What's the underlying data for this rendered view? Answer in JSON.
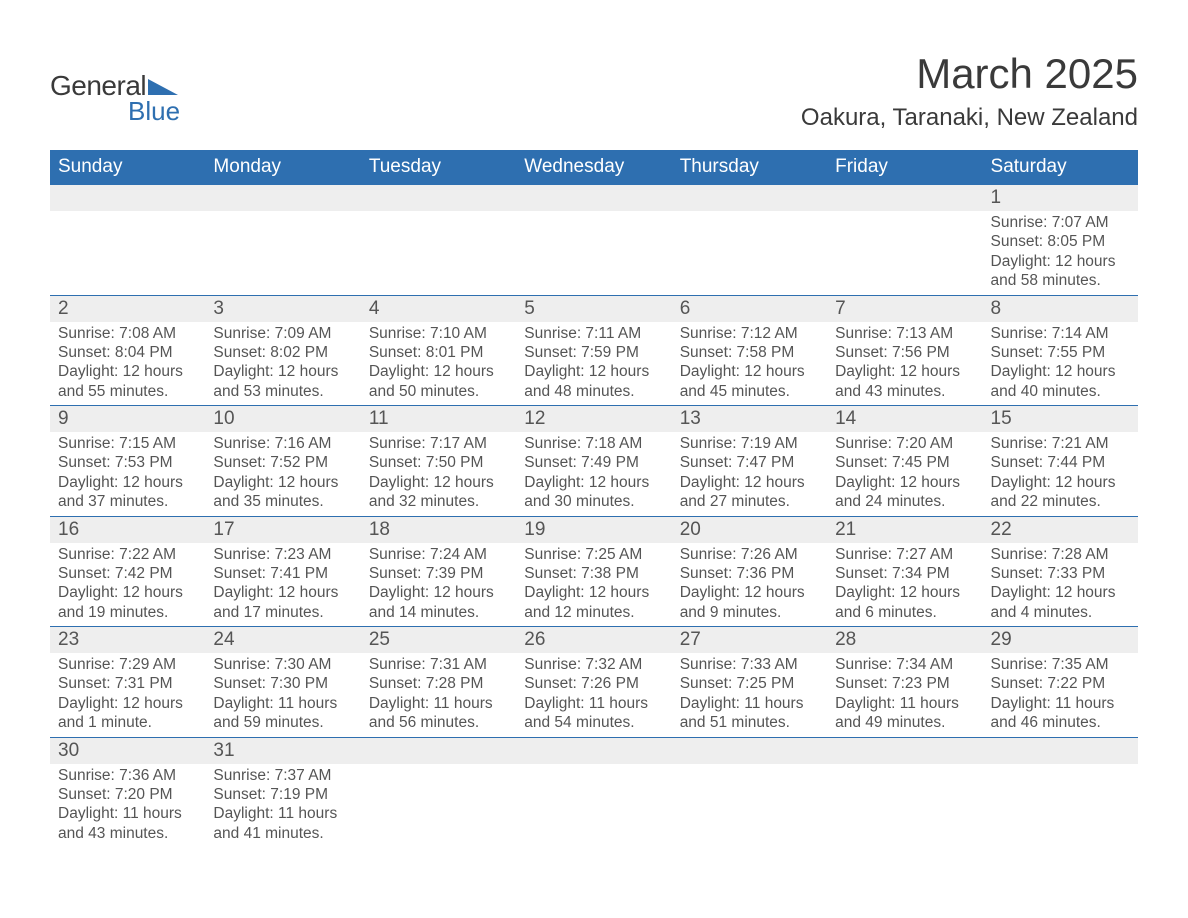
{
  "logo": {
    "general": "General",
    "blue": "Blue",
    "shape_color": "#2e6fb0"
  },
  "header": {
    "month_title": "March 2025",
    "location": "Oakura, Taranaki, New Zealand"
  },
  "colors": {
    "header_bg": "#2e6fb0",
    "header_text": "#ffffff",
    "daynum_bg": "#eeeeee",
    "body_text": "#555555",
    "border": "#2e6fb0",
    "page_bg": "#ffffff"
  },
  "typography": {
    "month_title_fontsize": 42,
    "location_fontsize": 24,
    "weekday_fontsize": 19,
    "daynum_fontsize": 19,
    "detail_fontsize": 15.5
  },
  "weekdays": [
    "Sunday",
    "Monday",
    "Tuesday",
    "Wednesday",
    "Thursday",
    "Friday",
    "Saturday"
  ],
  "weeks": [
    [
      null,
      null,
      null,
      null,
      null,
      null,
      {
        "n": "1",
        "sunrise": "7:07 AM",
        "sunset": "8:05 PM",
        "daylight": "12 hours and 58 minutes."
      }
    ],
    [
      {
        "n": "2",
        "sunrise": "7:08 AM",
        "sunset": "8:04 PM",
        "daylight": "12 hours and 55 minutes."
      },
      {
        "n": "3",
        "sunrise": "7:09 AM",
        "sunset": "8:02 PM",
        "daylight": "12 hours and 53 minutes."
      },
      {
        "n": "4",
        "sunrise": "7:10 AM",
        "sunset": "8:01 PM",
        "daylight": "12 hours and 50 minutes."
      },
      {
        "n": "5",
        "sunrise": "7:11 AM",
        "sunset": "7:59 PM",
        "daylight": "12 hours and 48 minutes."
      },
      {
        "n": "6",
        "sunrise": "7:12 AM",
        "sunset": "7:58 PM",
        "daylight": "12 hours and 45 minutes."
      },
      {
        "n": "7",
        "sunrise": "7:13 AM",
        "sunset": "7:56 PM",
        "daylight": "12 hours and 43 minutes."
      },
      {
        "n": "8",
        "sunrise": "7:14 AM",
        "sunset": "7:55 PM",
        "daylight": "12 hours and 40 minutes."
      }
    ],
    [
      {
        "n": "9",
        "sunrise": "7:15 AM",
        "sunset": "7:53 PM",
        "daylight": "12 hours and 37 minutes."
      },
      {
        "n": "10",
        "sunrise": "7:16 AM",
        "sunset": "7:52 PM",
        "daylight": "12 hours and 35 minutes."
      },
      {
        "n": "11",
        "sunrise": "7:17 AM",
        "sunset": "7:50 PM",
        "daylight": "12 hours and 32 minutes."
      },
      {
        "n": "12",
        "sunrise": "7:18 AM",
        "sunset": "7:49 PM",
        "daylight": "12 hours and 30 minutes."
      },
      {
        "n": "13",
        "sunrise": "7:19 AM",
        "sunset": "7:47 PM",
        "daylight": "12 hours and 27 minutes."
      },
      {
        "n": "14",
        "sunrise": "7:20 AM",
        "sunset": "7:45 PM",
        "daylight": "12 hours and 24 minutes."
      },
      {
        "n": "15",
        "sunrise": "7:21 AM",
        "sunset": "7:44 PM",
        "daylight": "12 hours and 22 minutes."
      }
    ],
    [
      {
        "n": "16",
        "sunrise": "7:22 AM",
        "sunset": "7:42 PM",
        "daylight": "12 hours and 19 minutes."
      },
      {
        "n": "17",
        "sunrise": "7:23 AM",
        "sunset": "7:41 PM",
        "daylight": "12 hours and 17 minutes."
      },
      {
        "n": "18",
        "sunrise": "7:24 AM",
        "sunset": "7:39 PM",
        "daylight": "12 hours and 14 minutes."
      },
      {
        "n": "19",
        "sunrise": "7:25 AM",
        "sunset": "7:38 PM",
        "daylight": "12 hours and 12 minutes."
      },
      {
        "n": "20",
        "sunrise": "7:26 AM",
        "sunset": "7:36 PM",
        "daylight": "12 hours and 9 minutes."
      },
      {
        "n": "21",
        "sunrise": "7:27 AM",
        "sunset": "7:34 PM",
        "daylight": "12 hours and 6 minutes."
      },
      {
        "n": "22",
        "sunrise": "7:28 AM",
        "sunset": "7:33 PM",
        "daylight": "12 hours and 4 minutes."
      }
    ],
    [
      {
        "n": "23",
        "sunrise": "7:29 AM",
        "sunset": "7:31 PM",
        "daylight": "12 hours and 1 minute."
      },
      {
        "n": "24",
        "sunrise": "7:30 AM",
        "sunset": "7:30 PM",
        "daylight": "11 hours and 59 minutes."
      },
      {
        "n": "25",
        "sunrise": "7:31 AM",
        "sunset": "7:28 PM",
        "daylight": "11 hours and 56 minutes."
      },
      {
        "n": "26",
        "sunrise": "7:32 AM",
        "sunset": "7:26 PM",
        "daylight": "11 hours and 54 minutes."
      },
      {
        "n": "27",
        "sunrise": "7:33 AM",
        "sunset": "7:25 PM",
        "daylight": "11 hours and 51 minutes."
      },
      {
        "n": "28",
        "sunrise": "7:34 AM",
        "sunset": "7:23 PM",
        "daylight": "11 hours and 49 minutes."
      },
      {
        "n": "29",
        "sunrise": "7:35 AM",
        "sunset": "7:22 PM",
        "daylight": "11 hours and 46 minutes."
      }
    ],
    [
      {
        "n": "30",
        "sunrise": "7:36 AM",
        "sunset": "7:20 PM",
        "daylight": "11 hours and 43 minutes."
      },
      {
        "n": "31",
        "sunrise": "7:37 AM",
        "sunset": "7:19 PM",
        "daylight": "11 hours and 41 minutes."
      },
      null,
      null,
      null,
      null,
      null
    ]
  ],
  "labels": {
    "sunrise_prefix": "Sunrise: ",
    "sunset_prefix": "Sunset: ",
    "daylight_prefix": "Daylight: "
  }
}
